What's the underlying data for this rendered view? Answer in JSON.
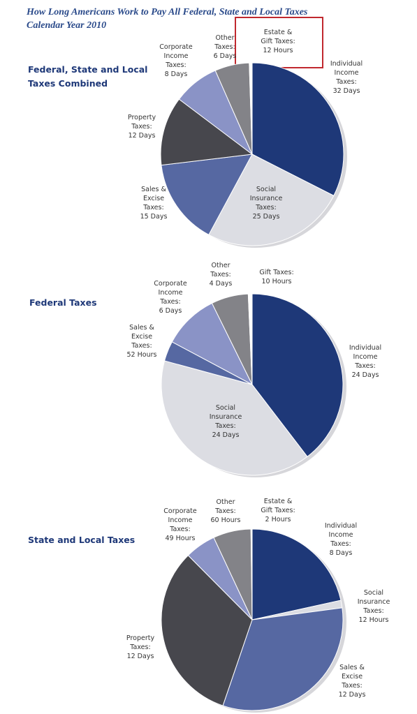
{
  "title": "How Long Americans Work to Pay All Federal, State and Local Taxes",
  "subtitle": "Calendar Year 2010",
  "chart_data": [
    {
      "type": "pie",
      "title": "Federal, State and Local\nTaxes Combined",
      "categories": [
        "Individual\nIncome\nTaxes:",
        "Social\nInsurance\nTaxes:",
        "Sales &\nExcise\nTaxes:",
        "Property\nTaxes:",
        "Corporate\nIncome\nTaxes:",
        "Other\nTaxes:",
        "Estate &\nGift Taxes:"
      ],
      "values": [
        32,
        25,
        15,
        12,
        8,
        6,
        0.5
      ],
      "value_labels": [
        "32 Days",
        "25 Days",
        "15 Days",
        "12 Days",
        "8 Days",
        "6 Days",
        "12 Hours"
      ],
      "colors": [
        "#1e3878",
        "#dcdde3",
        "#5668a2",
        "#47474d",
        "#8a93c6",
        "#838388",
        "#ffffff"
      ]
    },
    {
      "type": "pie",
      "title": "Federal Taxes",
      "categories": [
        "Individual\nIncome\nTaxes:",
        "Social\nInsurance\nTaxes:",
        "Sales &\nExcise\nTaxes:",
        "Corporate\nIncome\nTaxes:",
        "Other\nTaxes:",
        "Gift Taxes:"
      ],
      "values": [
        24,
        24,
        2.17,
        6,
        4,
        0.42
      ],
      "value_labels": [
        "24 Days",
        "24 Days",
        "52 Hours",
        "6 Days",
        "4 Days",
        "10 Hours"
      ],
      "colors": [
        "#1e3878",
        "#dcdde3",
        "#5668a2",
        "#8a93c6",
        "#838388",
        "#ffffff"
      ]
    },
    {
      "type": "pie",
      "title": "State and Local Taxes",
      "categories": [
        "Individual\nIncome\nTaxes:",
        "Social\nInsurance\nTaxes:",
        "Sales &\nExcise\nTaxes:",
        "Property\nTaxes:",
        "Corporate\nIncome\nTaxes:",
        "Other\nTaxes:",
        "Estate &\nGift Taxes:"
      ],
      "values": [
        8,
        0.5,
        12,
        12,
        2.04,
        2.5,
        0.08
      ],
      "value_labels": [
        "8 Days",
        "12 Hours",
        "12 Days",
        "12 Days",
        "49 Hours",
        "60 Hours",
        "2 Hours"
      ],
      "colors": [
        "#1e3878",
        "#dcdde3",
        "#5668a2",
        "#47474d",
        "#8a93c6",
        "#838388",
        "#ffffff"
      ]
    }
  ]
}
